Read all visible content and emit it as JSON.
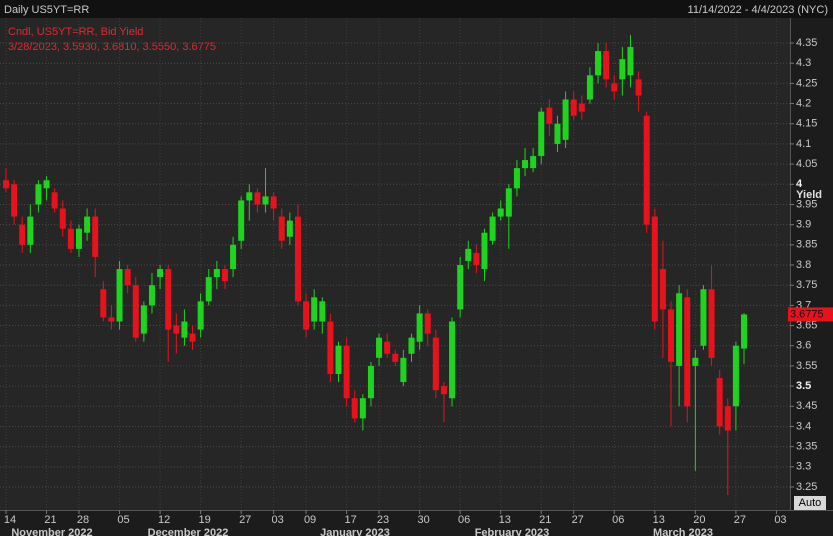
{
  "chart_data": {
    "type": "candlestick",
    "title": "Daily US5YT=RR",
    "date_range": "11/14/2022 - 4/4/2023 (NYC)",
    "legend_title": "Cndl, US5YT=RR, Bid Yield",
    "legend_detail": "3/28/2023, 3.5930, 3.6810, 3.5550, 3.6775",
    "y_axis_label": "Yield",
    "button_label": "Auto",
    "up_color": "#1ed41e",
    "down_color": "#e8121c",
    "grid": true,
    "ylim": [
      3.193,
      4.412
    ],
    "yticks": [
      3.25,
      3.3,
      3.35,
      3.4,
      3.45,
      3.5,
      3.55,
      3.6,
      3.65,
      3.7,
      3.75,
      3.8,
      3.85,
      3.9,
      3.95,
      4,
      4.05,
      4.1,
      4.15,
      4.2,
      4.25,
      4.3,
      4.35
    ],
    "bold_ticks": [
      3.5,
      4
    ],
    "last_price": {
      "value": 3.6775,
      "label": "3.6775"
    },
    "month_labels": [
      "November 2022",
      "December 2022",
      "January 2023",
      "February 2023",
      "March 2023"
    ],
    "categories": [
      "14",
      null,
      null,
      null,
      null,
      "21",
      null,
      null,
      null,
      "28",
      null,
      null,
      null,
      null,
      "05",
      null,
      null,
      null,
      null,
      "12",
      null,
      null,
      null,
      null,
      "19",
      null,
      null,
      null,
      null,
      "27",
      null,
      null,
      null,
      "03",
      null,
      null,
      null,
      "09",
      null,
      null,
      null,
      null,
      "17",
      null,
      null,
      null,
      "23",
      null,
      null,
      null,
      null,
      "30",
      null,
      null,
      null,
      null,
      "06",
      null,
      null,
      null,
      null,
      "13",
      null,
      null,
      null,
      null,
      "21",
      null,
      null,
      null,
      "27",
      null,
      null,
      null,
      null,
      "06",
      null,
      null,
      null,
      null,
      "13",
      null,
      null,
      null,
      null,
      "20",
      null,
      null,
      null,
      null,
      "27",
      null,
      null,
      null,
      null,
      "03",
      null
    ],
    "open": [
      4.01,
      4.0,
      3.9,
      3.85,
      3.95,
      3.99,
      3.98,
      3.94,
      3.89,
      3.84,
      3.88,
      3.92,
      3.74,
      3.67,
      3.66,
      3.79,
      3.75,
      3.63,
      3.7,
      3.77,
      3.79,
      3.65,
      3.62,
      3.63,
      3.64,
      3.71,
      3.77,
      3.79,
      3.79,
      3.86,
      3.96,
      3.98,
      3.95,
      3.97,
      3.92,
      3.87,
      3.92,
      3.71,
      3.66,
      3.66,
      3.66,
      3.53,
      3.6,
      3.47,
      3.42,
      3.47,
      3.57,
      3.61,
      3.58,
      3.51,
      3.58,
      3.61,
      3.68,
      3.62,
      3.5,
      3.47,
      3.69,
      3.81,
      3.83,
      3.79,
      3.86,
      3.92,
      3.92,
      3.99,
      4.04,
      4.04,
      4.07,
      4.19,
      4.1,
      4.11,
      4.21,
      4.2,
      4.21,
      4.27,
      4.33,
      4.25,
      4.26,
      4.27,
      4.26,
      4.17,
      3.92,
      3.79,
      3.69,
      3.55,
      3.72,
      3.55,
      3.6,
      3.74,
      3.52,
      3.45,
      3.45,
      3.593,
      null,
      null,
      null,
      null,
      null
    ],
    "high": [
      4.04,
      4.01,
      3.92,
      3.95,
      4.01,
      4.02,
      3.99,
      3.96,
      3.91,
      3.9,
      3.94,
      3.94,
      3.76,
      3.7,
      3.81,
      3.8,
      3.77,
      3.71,
      3.78,
      3.8,
      3.8,
      3.68,
      3.69,
      3.65,
      3.73,
      3.79,
      3.81,
      3.8,
      3.87,
      3.97,
      4.0,
      3.99,
      4.04,
      3.98,
      3.94,
      3.93,
      3.95,
      3.73,
      3.74,
      3.72,
      3.68,
      3.61,
      3.62,
      3.49,
      3.48,
      3.56,
      3.63,
      3.63,
      3.59,
      3.59,
      3.63,
      3.7,
      3.69,
      3.64,
      3.51,
      3.67,
      3.82,
      3.86,
      3.85,
      3.89,
      3.93,
      3.96,
      4.0,
      4.06,
      4.09,
      4.09,
      4.19,
      4.21,
      4.17,
      4.23,
      4.23,
      4.22,
      4.29,
      4.35,
      4.35,
      4.27,
      4.34,
      4.37,
      4.28,
      4.18,
      3.94,
      3.86,
      3.71,
      3.75,
      3.74,
      3.59,
      3.75,
      3.8,
      3.54,
      3.47,
      3.61,
      3.681,
      null,
      null,
      null,
      null,
      null
    ],
    "low": [
      3.98,
      3.9,
      3.83,
      3.83,
      3.93,
      3.96,
      3.93,
      3.87,
      3.83,
      3.82,
      3.86,
      3.77,
      3.66,
      3.64,
      3.64,
      3.73,
      3.61,
      3.61,
      3.68,
      3.74,
      3.56,
      3.58,
      3.6,
      3.59,
      3.62,
      3.7,
      3.74,
      3.74,
      3.77,
      3.84,
      3.91,
      3.93,
      3.93,
      3.91,
      3.84,
      3.85,
      3.7,
      3.62,
      3.64,
      3.63,
      3.51,
      3.51,
      3.45,
      3.41,
      3.39,
      3.45,
      3.55,
      3.57,
      3.55,
      3.5,
      3.56,
      3.59,
      3.6,
      3.47,
      3.41,
      3.45,
      3.67,
      3.79,
      3.78,
      3.76,
      3.85,
      3.91,
      3.84,
      3.97,
      4.02,
      4.03,
      4.05,
      4.12,
      4.08,
      4.09,
      4.16,
      4.16,
      4.2,
      4.25,
      4.24,
      4.21,
      4.22,
      4.24,
      4.18,
      3.88,
      3.64,
      3.57,
      3.4,
      3.45,
      3.41,
      3.29,
      3.59,
      3.55,
      3.38,
      3.23,
      3.39,
      3.555,
      null,
      null,
      null,
      null,
      null
    ],
    "close": [
      3.99,
      3.92,
      3.85,
      3.92,
      4.0,
      4.01,
      3.94,
      3.89,
      3.84,
      3.89,
      3.92,
      3.82,
      3.67,
      3.66,
      3.79,
      3.75,
      3.62,
      3.7,
      3.75,
      3.79,
      3.64,
      3.63,
      3.66,
      3.61,
      3.71,
      3.77,
      3.79,
      3.76,
      3.85,
      3.96,
      3.98,
      3.95,
      3.97,
      3.94,
      3.86,
      3.91,
      3.71,
      3.64,
      3.72,
      3.71,
      3.53,
      3.6,
      3.47,
      3.42,
      3.47,
      3.55,
      3.62,
      3.58,
      3.56,
      3.57,
      3.62,
      3.68,
      3.63,
      3.49,
      3.48,
      3.66,
      3.8,
      3.84,
      3.8,
      3.88,
      3.92,
      3.94,
      3.99,
      4.04,
      4.06,
      4.07,
      4.18,
      4.15,
      4.15,
      4.21,
      4.17,
      4.18,
      4.27,
      4.33,
      4.26,
      4.23,
      4.31,
      4.34,
      4.22,
      3.9,
      3.66,
      3.69,
      3.56,
      3.73,
      3.45,
      3.57,
      3.74,
      3.57,
      3.4,
      3.39,
      3.6,
      3.6775,
      null,
      null,
      null,
      null,
      null
    ]
  }
}
